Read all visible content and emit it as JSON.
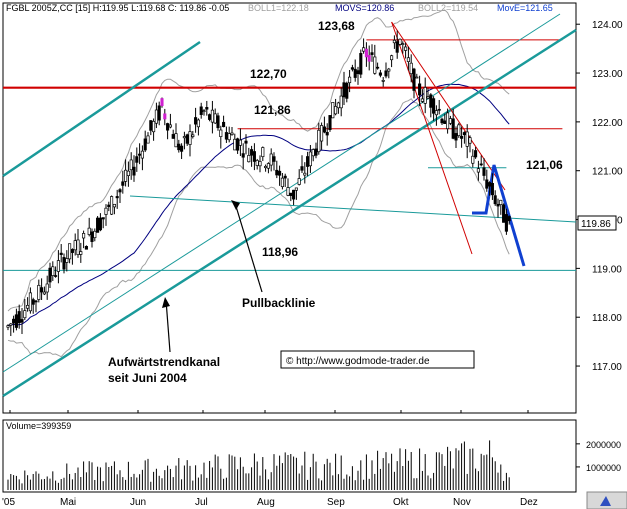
{
  "header": {
    "symbol": "FGBL 2005Z,CC [15] H:119.95 L:119.68 C: 119.86 -0.05",
    "boll1": "BOLL1=122.18",
    "movs": "MOVS=120.86",
    "boll2": "BOLL2=119.54",
    "move": "MovE=121.65"
  },
  "volume_label": "Volume=399359",
  "copyright": "© http://www.godmode-trader.de",
  "annotations": {
    "high": "123,68",
    "resistance1": "122,70",
    "resistance2": "121,86",
    "resistance3": "121,06",
    "support": "118,96",
    "pullback": "Pullbacklinie",
    "channel_line1": "Aufwärtstrendkanal",
    "channel_line2": "seit Juni 2004"
  },
  "last_price": "119.86",
  "colors": {
    "candle": "#000000",
    "bollinger": "#a0a0a0",
    "ma": "#000080",
    "trend": "#1a9a9a",
    "resistance": "#d00000",
    "forecast": "#1040d0",
    "highlight": "#d020d0"
  },
  "chart_data": {
    "type": "candlestick",
    "x_ticks": [
      "'05",
      "Mai",
      "Jun",
      "Jul",
      "Aug",
      "Sep",
      "Okt",
      "Nov",
      "Dez"
    ],
    "y_ticks": [
      "124.00",
      "123.00",
      "122.00",
      "121.00",
      "120.00",
      "119.00",
      "118.00",
      "117.00"
    ],
    "y_range": [
      116.1,
      124.25
    ],
    "volume_ticks": [
      "2000000",
      "1000000"
    ],
    "volume_max": 2600000,
    "levels": {
      "high": 123.68,
      "resistance_bold": 122.7,
      "resistance_mid": 121.86,
      "resistance_low": 121.06,
      "support": 118.96
    },
    "price_path": [
      {
        "d": 0,
        "p": 117.8
      },
      {
        "d": 10,
        "p": 118.4
      },
      {
        "d": 20,
        "p": 119.2
      },
      {
        "d": 28,
        "p": 119.6
      },
      {
        "d": 36,
        "p": 120.2
      },
      {
        "d": 45,
        "p": 121.1
      },
      {
        "d": 55,
        "p": 122.3
      },
      {
        "d": 62,
        "p": 121.4
      },
      {
        "d": 70,
        "p": 122.2
      },
      {
        "d": 78,
        "p": 121.8
      },
      {
        "d": 86,
        "p": 121.4
      },
      {
        "d": 94,
        "p": 121.2
      },
      {
        "d": 102,
        "p": 120.5
      },
      {
        "d": 110,
        "p": 121.5
      },
      {
        "d": 118,
        "p": 122.4
      },
      {
        "d": 128,
        "p": 123.4
      },
      {
        "d": 134,
        "p": 123.0
      },
      {
        "d": 140,
        "p": 123.7
      },
      {
        "d": 146,
        "p": 122.7
      },
      {
        "d": 152,
        "p": 122.4
      },
      {
        "d": 158,
        "p": 121.9
      },
      {
        "d": 164,
        "p": 121.6
      },
      {
        "d": 170,
        "p": 120.9
      },
      {
        "d": 176,
        "p": 120.2
      },
      {
        "d": 179,
        "p": 119.86
      }
    ],
    "volume_path": [
      {
        "d": 0,
        "v": 600000
      },
      {
        "d": 30,
        "v": 800000
      },
      {
        "d": 60,
        "v": 900000
      },
      {
        "d": 90,
        "v": 1100000
      },
      {
        "d": 120,
        "v": 1000000
      },
      {
        "d": 150,
        "v": 1200000
      },
      {
        "d": 175,
        "v": 1500000
      },
      {
        "d": 179,
        "v": 400000
      }
    ]
  }
}
